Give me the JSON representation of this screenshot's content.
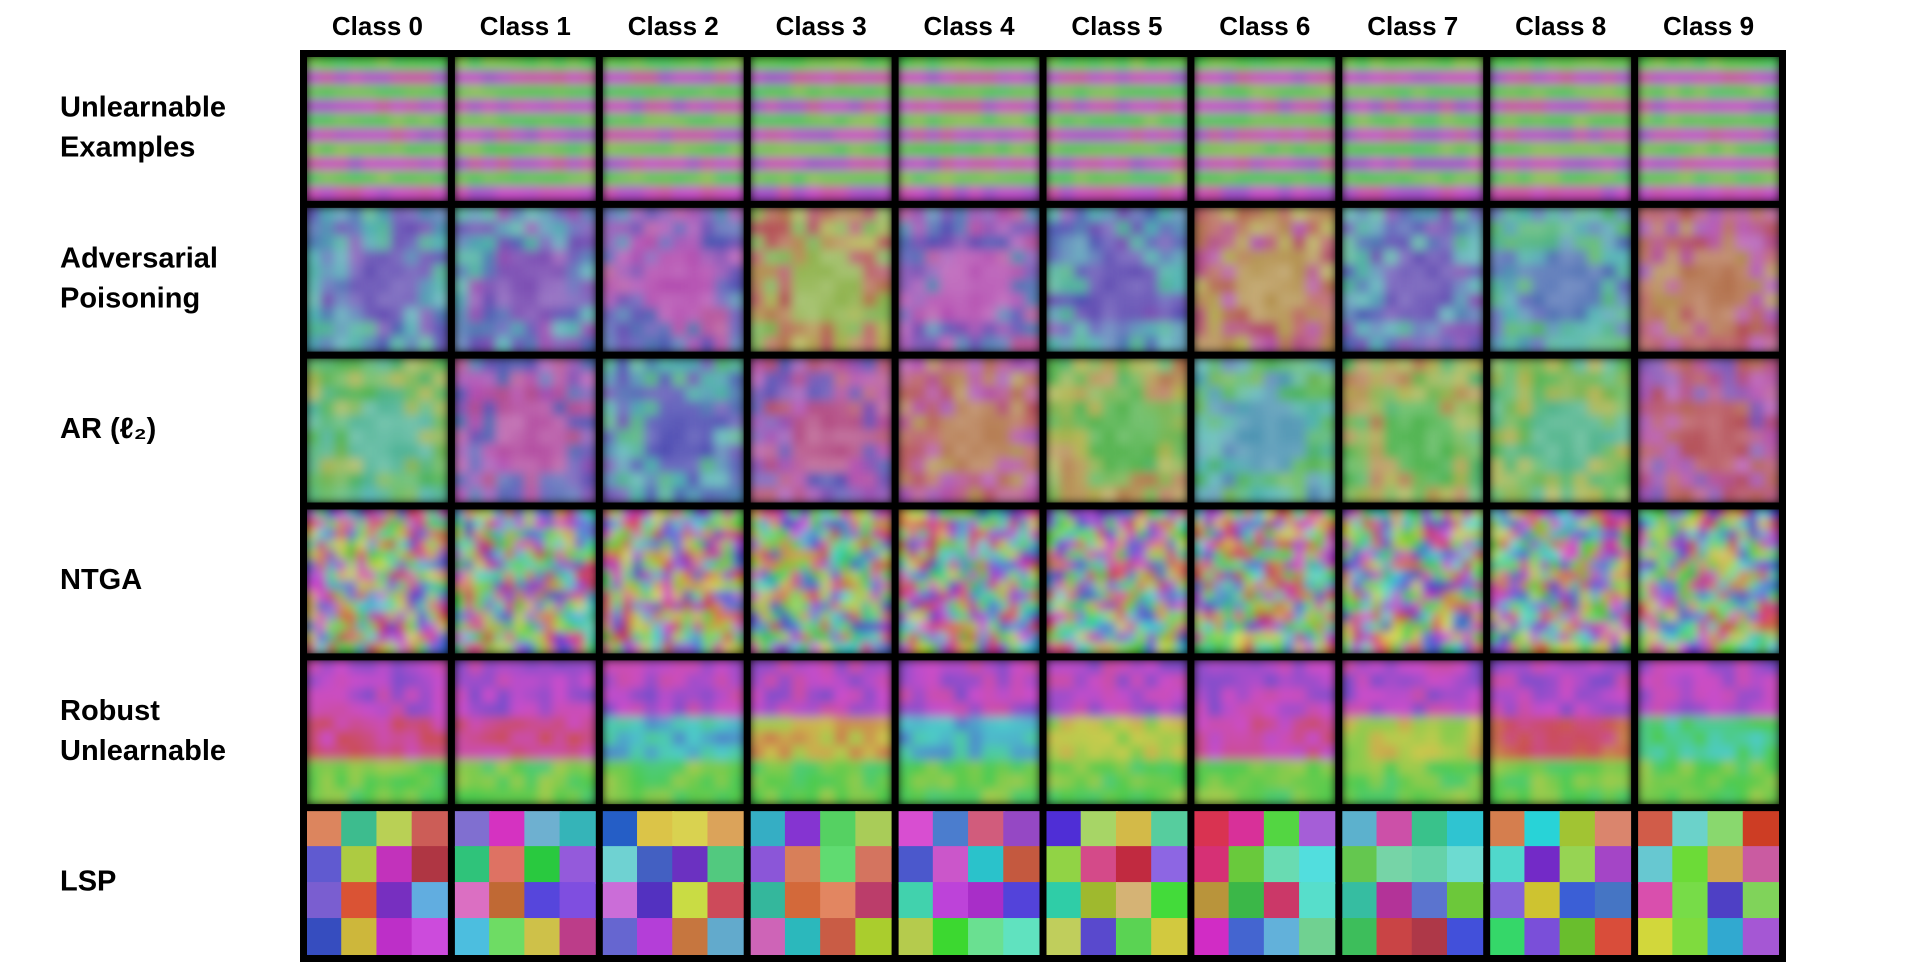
{
  "columns": [
    "Class 0",
    "Class 1",
    "Class 2",
    "Class 3",
    "Class 4",
    "Class 5",
    "Class 6",
    "Class 7",
    "Class 8",
    "Class 9"
  ],
  "rows": [
    {
      "label": [
        "Unlearnable",
        "Examples"
      ]
    },
    {
      "label": [
        "Adversarial",
        "Poisoning"
      ]
    },
    {
      "label": [
        "AR (ℓ₂)"
      ]
    },
    {
      "label": [
        "NTGA"
      ]
    },
    {
      "label": [
        "Robust",
        "Unlearnable"
      ]
    },
    {
      "label": [
        "LSP"
      ]
    }
  ]
}
